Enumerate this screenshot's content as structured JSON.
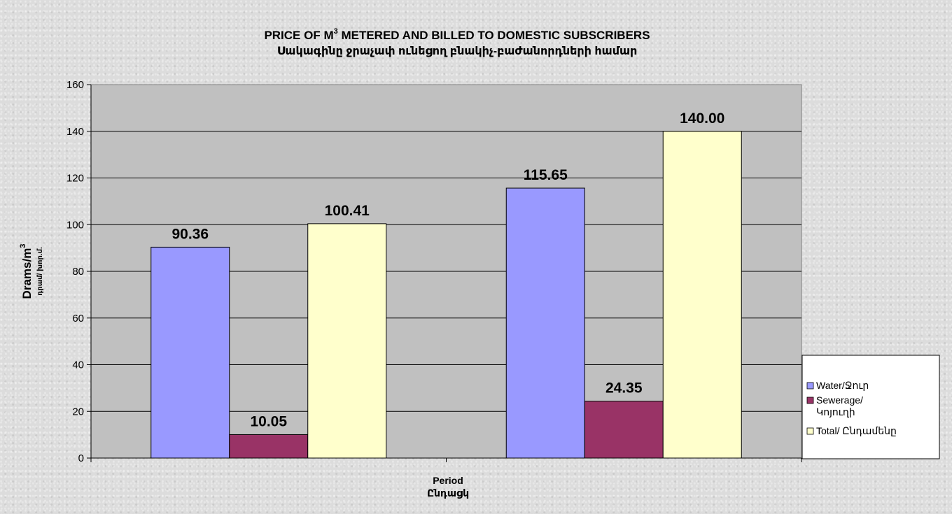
{
  "chart_data": {
    "type": "bar",
    "title_line1_prefix": "PRICE OF M",
    "title_line1_sup": "3",
    "title_line1_suffix": " METERED  AND BILLED TO DOMESTIC SUBSCRIBERS",
    "title_line2": "Սակագինը ջրաչափ ունեցող բնակիչ-բաժանորդների համար",
    "xlabel_line1": "Period",
    "xlabel_line2": "Ընդացկ",
    "ylabel_main": "Drams/m",
    "ylabel_sup": "3",
    "ylabel_sub": "դրամ/ խոր.մ.",
    "ylim": [
      0,
      160
    ],
    "yticks": [
      "0",
      "20",
      "40",
      "60",
      "80",
      "100",
      "120",
      "140",
      "160"
    ],
    "categories": [
      "",
      ""
    ],
    "series": [
      {
        "name": "Water/Ջուր",
        "values": [
          90.36,
          115.65
        ],
        "labels": [
          "90.36",
          "115.65"
        ],
        "color": "#9999ff"
      },
      {
        "name": "Sewerage/ Կոյուղի",
        "legend_lines": [
          "Sewerage/",
          "Կոյուղի"
        ],
        "values": [
          10.05,
          24.35
        ],
        "labels": [
          "10.05",
          "24.35"
        ],
        "color": "#993366"
      },
      {
        "name": "Total/ Ընդամենը",
        "values": [
          100.41,
          140.0
        ],
        "labels": [
          "100.41",
          "140.00"
        ],
        "color": "#ffffcc"
      }
    ],
    "grid": true,
    "legend_position": "right",
    "plot_background": "#c0c0c0"
  }
}
